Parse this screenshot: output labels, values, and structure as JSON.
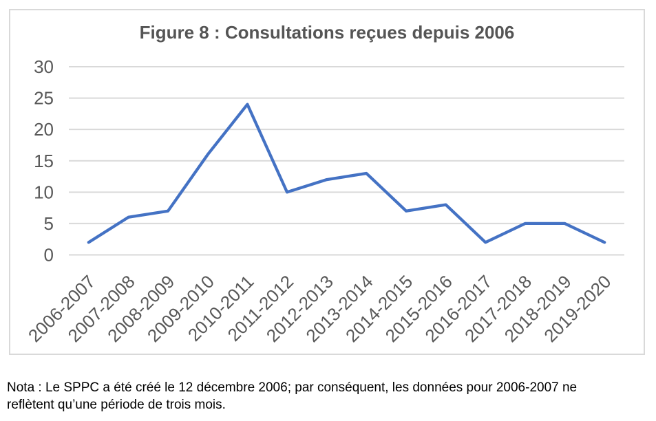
{
  "colors": {
    "line": "#4472C4",
    "gridline": "#D9D9D9",
    "axis_text": "#595959",
    "title_text": "#555555",
    "box_border": "#D9D9D9",
    "note_text": "#000000",
    "background": "#FFFFFF"
  },
  "chart_data": {
    "type": "line",
    "title": "Figure 8 : Consultations reçues depuis 2006",
    "categories": [
      "2006-2007",
      "2007-2008",
      "2008-2009",
      "2009-2010",
      "2010-2011",
      "2011-2012",
      "2012-2013",
      "2013-2014",
      "2014-2015",
      "2015-2016",
      "2016-2017",
      "2017-2018",
      "2018-2019",
      "2019-2020"
    ],
    "values": [
      2,
      6,
      7,
      16,
      24,
      10,
      12,
      13,
      7,
      8,
      2,
      5,
      5,
      2
    ],
    "xlabel": "",
    "ylabel": "",
    "ylim": [
      0,
      30
    ],
    "ytick_step": 5,
    "yticks": [
      0,
      5,
      10,
      15,
      20,
      25,
      30
    ],
    "grid": "horizontal",
    "legend": "none",
    "x_label_rotation_deg": -45
  },
  "note": {
    "lines": [
      "Nota : Le SPPC a été créé le 12 décembre 2006; par conséquent, les données pour 2006-2007 ne",
      "reflètent qu’une période de trois mois."
    ]
  }
}
